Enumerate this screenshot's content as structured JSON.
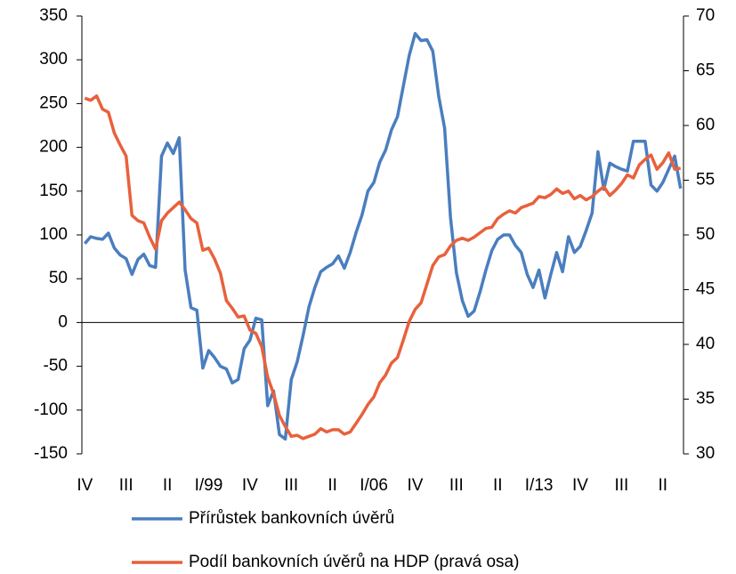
{
  "chart_data": {
    "type": "line",
    "categories": [
      "IV",
      null,
      null,
      null,
      null,
      null,
      null,
      "III",
      null,
      null,
      null,
      null,
      null,
      null,
      "II",
      null,
      null,
      null,
      null,
      null,
      null,
      "I/99",
      null,
      null,
      null,
      null,
      null,
      null,
      "IV",
      null,
      null,
      null,
      null,
      null,
      null,
      "III",
      null,
      null,
      null,
      null,
      null,
      null,
      "II",
      null,
      null,
      null,
      null,
      null,
      null,
      "I/06",
      null,
      null,
      null,
      null,
      null,
      null,
      "IV",
      null,
      null,
      null,
      null,
      null,
      null,
      "III",
      null,
      null,
      null,
      null,
      null,
      null,
      "II",
      null,
      null,
      null,
      null,
      null,
      null,
      "I/13",
      null,
      null,
      null,
      null,
      null,
      null,
      "IV",
      null,
      null,
      null,
      null,
      null,
      null,
      "III",
      null,
      null,
      null,
      null,
      null,
      null,
      "II",
      null,
      null,
      null
    ],
    "series": [
      {
        "name": "Přírůstek bankovních úvěrů",
        "color": "#4a7ebf",
        "values": [
          90,
          98,
          96,
          95,
          102,
          85,
          77,
          73,
          55,
          72,
          78,
          65,
          63,
          190,
          205,
          193,
          211,
          60,
          17,
          14,
          -52,
          -32,
          -40,
          -50,
          -53,
          -69,
          -65,
          -30,
          -20,
          5,
          3,
          -95,
          -78,
          -128,
          -133,
          -65,
          -45,
          -15,
          18,
          40,
          58,
          63,
          67,
          76,
          62,
          80,
          103,
          123,
          150,
          160,
          183,
          197,
          220,
          235,
          270,
          305,
          330,
          322,
          323,
          310,
          258,
          222,
          120,
          57,
          25,
          7,
          13,
          35,
          60,
          82,
          95,
          100,
          100,
          88,
          80,
          55,
          40,
          60,
          28,
          55,
          80,
          58,
          98,
          80,
          87,
          105,
          125,
          195,
          152,
          182,
          178,
          175,
          173,
          207,
          207,
          207,
          157,
          150,
          160,
          175,
          190,
          153
        ]
      },
      {
        "name": "Podíl bankovních úvěrů na HDP (pravá osa)",
        "color": "#e8613c",
        "axis": "y2",
        "values": [
          62.5,
          62.3,
          62.7,
          61.5,
          61.2,
          59.3,
          58.2,
          57.2,
          51.8,
          51.3,
          51.1,
          49.8,
          48.7,
          51.3,
          52.0,
          52.5,
          53.0,
          52.3,
          51.5,
          51.1,
          48.6,
          48.8,
          47.8,
          46.5,
          44.0,
          43.3,
          42.5,
          42.6,
          41.3,
          41.0,
          39.8,
          37.0,
          35.5,
          33.5,
          32.5,
          31.6,
          31.7,
          31.4,
          31.6,
          31.8,
          32.3,
          32.0,
          32.2,
          32.2,
          31.8,
          32.0,
          32.8,
          33.6,
          34.5,
          35.2,
          36.5,
          37.2,
          38.3,
          38.8,
          40.4,
          42.1,
          43.2,
          43.8,
          45.5,
          47.2,
          48.0,
          48.2,
          49.0,
          49.5,
          49.7,
          49.5,
          49.8,
          50.2,
          50.6,
          50.7,
          51.5,
          51.9,
          52.2,
          52.0,
          52.5,
          52.7,
          52.9,
          53.5,
          53.4,
          53.7,
          54.2,
          53.8,
          54.0,
          53.3,
          53.6,
          53.2,
          53.5,
          54.0,
          54.4,
          53.6,
          54.1,
          54.7,
          55.5,
          55.2,
          56.4,
          56.9,
          57.3,
          56.0,
          56.6,
          57.5,
          56.0,
          56.1
        ]
      }
    ],
    "ylim": [
      -150,
      350
    ],
    "yticks": [
      -150,
      -100,
      -50,
      0,
      50,
      100,
      150,
      200,
      250,
      300,
      350
    ],
    "y2lim": [
      30,
      70
    ],
    "y2ticks": [
      30,
      35,
      40,
      45,
      50,
      55,
      60,
      65,
      70
    ]
  }
}
